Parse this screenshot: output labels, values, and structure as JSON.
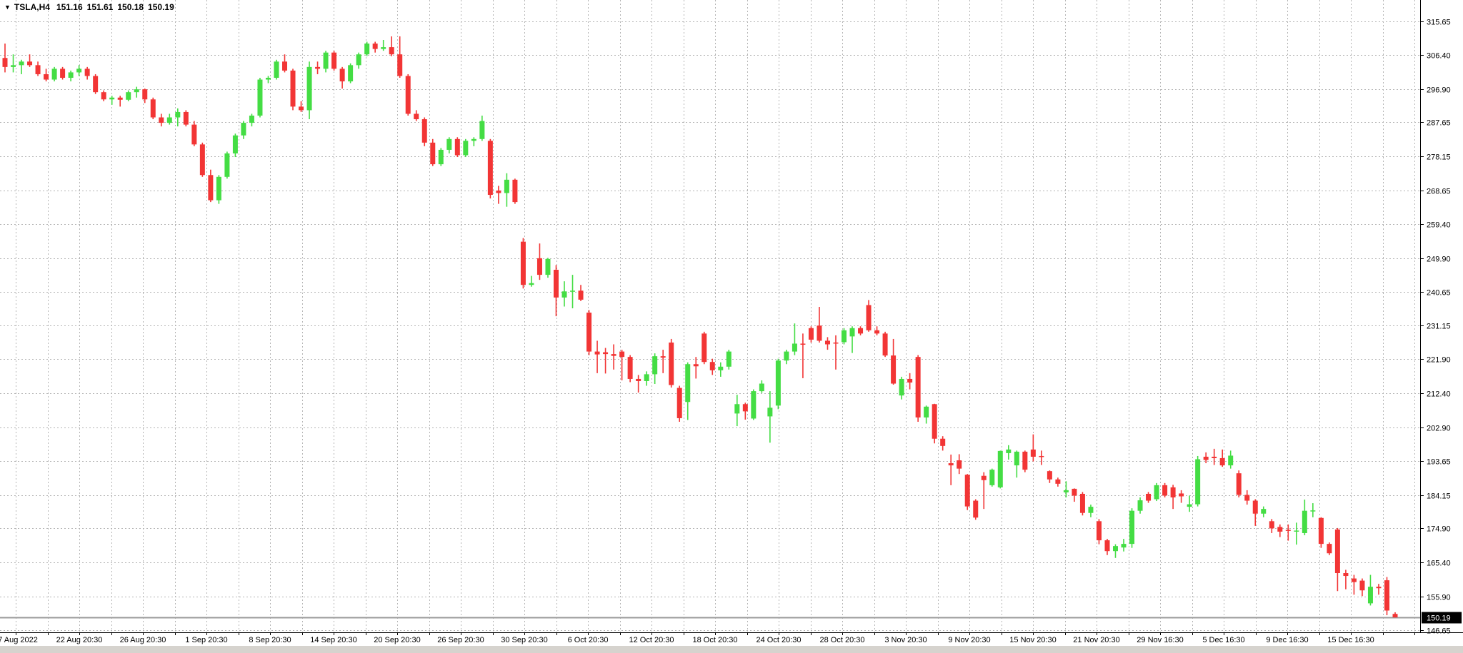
{
  "title_overlay": {
    "dropdown_icon": "▼",
    "symbol_period": "TSLA,H4",
    "open": "151.16",
    "high": "151.61",
    "low": "150.18",
    "close": "150.19"
  },
  "colors": {
    "background": "#ffffff",
    "bull": "#44dd44",
    "bear": "#f23535",
    "grid": "#b4b4b4",
    "axis_line": "#000000",
    "axis_text": "#000000",
    "price_line": "#9b9b9b",
    "badge_bg": "#000000",
    "badge_text": "#ffffff",
    "bottom_strip": "#d6d3ce"
  },
  "y_axis": {
    "labels": [
      "315.65",
      "306.40",
      "296.90",
      "287.65",
      "278.15",
      "268.65",
      "259.40",
      "249.90",
      "240.65",
      "231.15",
      "221.90",
      "212.40",
      "202.90",
      "193.65",
      "184.15",
      "174.90",
      "165.40",
      "155.90",
      "146.65"
    ],
    "current_price": "150.19"
  },
  "x_axis": {
    "labels": [
      "17 Aug 2022",
      "22 Aug 20:30",
      "26 Aug 20:30",
      "1 Sep 20:30",
      "8 Sep 20:30",
      "14 Sep 20:30",
      "20 Sep 20:30",
      "26 Sep 20:30",
      "30 Sep 20:30",
      "6 Oct 20:30",
      "12 Oct 20:30",
      "18 Oct 20:30",
      "24 Oct 20:30",
      "28 Oct 20:30",
      "3 Nov 20:30",
      "9 Nov 20:30",
      "15 Nov 20:30",
      "21 Nov 20:30",
      "29 Nov 16:30",
      "5 Dec 16:30",
      "9 Dec 16:30",
      "15 Dec 16:30"
    ]
  },
  "chart_data": {
    "type": "candlestick",
    "symbol": "TSLA",
    "timeframe": "H4",
    "title": "TSLA,H4",
    "quote": {
      "open": 151.16,
      "high": 151.61,
      "low": 150.18,
      "close": 150.19
    },
    "current_price": 150.19,
    "price_range_shown": [
      146.65,
      315.65
    ],
    "price_axis_ticks": [
      315.65,
      306.4,
      296.9,
      287.65,
      278.15,
      268.65,
      259.4,
      249.9,
      240.65,
      231.15,
      221.9,
      212.4,
      202.9,
      193.65,
      184.15,
      174.9,
      165.4,
      155.9,
      146.65
    ],
    "time_axis_ticks": [
      "17 Aug 2022",
      "22 Aug 20:30",
      "26 Aug 20:30",
      "1 Sep 20:30",
      "8 Sep 20:30",
      "14 Sep 20:30",
      "20 Sep 20:30",
      "26 Sep 20:30",
      "30 Sep 20:30",
      "6 Oct 20:30",
      "12 Oct 20:30",
      "18 Oct 20:30",
      "24 Oct 20:30",
      "28 Oct 20:30",
      "3 Nov 20:30",
      "9 Nov 20:30",
      "15 Nov 20:30",
      "21 Nov 20:30",
      "29 Nov 16:30",
      "5 Dec 16:30",
      "9 Dec 16:30",
      "15 Dec 16:30"
    ],
    "grid": "dashed",
    "legend": "none",
    "candles_ohlc": [
      [
        305.5,
        309.5,
        301.5,
        303
      ],
      [
        303,
        306.5,
        301.5,
        303.5
      ],
      [
        303.5,
        305,
        301,
        304.5
      ],
      [
        304.5,
        306.5,
        303,
        303.5
      ],
      [
        303.5,
        304.5,
        300.5,
        301
      ],
      [
        301,
        302.5,
        299,
        299.5
      ],
      [
        299.5,
        303,
        299,
        302.5
      ],
      [
        302.5,
        303,
        299.5,
        300
      ],
      [
        300,
        302,
        299,
        301.5
      ],
      [
        301.5,
        303.5,
        300.5,
        302.5
      ],
      [
        302.5,
        303,
        299.5,
        300.5
      ],
      [
        300.5,
        301,
        295.5,
        296
      ],
      [
        296,
        296.5,
        293.5,
        294
      ],
      [
        294,
        295,
        292.5,
        294.5
      ],
      [
        294.5,
        295,
        292,
        293.9
      ],
      [
        293.9,
        296.5,
        293.5,
        296
      ],
      [
        296,
        297.5,
        294.5,
        296.8
      ],
      [
        296.8,
        297,
        293,
        294
      ],
      [
        294,
        294.5,
        288.5,
        289
      ],
      [
        289,
        290,
        286.5,
        287.5
      ],
      [
        287.5,
        290,
        287,
        289
      ],
      [
        289,
        291.5,
        286.5,
        290.5
      ],
      [
        290.5,
        291,
        286.5,
        287
      ],
      [
        287,
        288,
        281,
        281.5
      ],
      [
        281.5,
        282,
        272.5,
        273
      ],
      [
        273,
        274.5,
        265.5,
        266
      ],
      [
        266,
        273,
        265,
        272.5
      ],
      [
        272.5,
        279.5,
        272,
        279
      ],
      [
        279,
        284.5,
        278,
        284
      ],
      [
        284,
        288,
        283,
        287.5
      ],
      [
        287.5,
        290,
        286.5,
        289.5
      ],
      [
        289.5,
        300,
        289,
        299.5
      ],
      [
        299.5,
        300.5,
        298.5,
        300
      ],
      [
        300,
        305,
        299.5,
        304.5
      ],
      [
        304.5,
        306.5,
        301.5,
        302
      ],
      [
        302,
        302.5,
        291,
        292
      ],
      [
        292,
        293.5,
        290.5,
        291
      ],
      [
        291,
        304.5,
        288.5,
        303
      ],
      [
        303,
        304.5,
        301,
        302.5
      ],
      [
        302.5,
        307.5,
        301.5,
        307
      ],
      [
        307,
        307.5,
        302,
        302.5
      ],
      [
        302.5,
        303,
        297,
        299
      ],
      [
        299,
        304,
        298.5,
        303.5
      ],
      [
        303.5,
        307,
        302.5,
        306.5
      ],
      [
        306.5,
        310,
        306,
        309.5
      ],
      [
        309.5,
        310,
        307,
        308
      ],
      [
        308,
        310.5,
        307.5,
        308.5
      ],
      [
        308.5,
        311.5,
        306,
        306.5
      ],
      [
        306.5,
        311.5,
        300,
        300.5
      ],
      [
        300.5,
        301,
        289.5,
        290
      ],
      [
        290,
        291,
        288,
        288.5
      ],
      [
        288.5,
        289,
        281,
        282
      ],
      [
        282,
        283,
        275.5,
        276
      ],
      [
        276,
        280.5,
        275.5,
        280
      ],
      [
        280,
        283.5,
        279,
        283
      ],
      [
        283,
        283.5,
        278,
        278.5
      ],
      [
        278.5,
        283,
        278,
        282.5
      ],
      [
        282.5,
        283.5,
        281,
        283
      ],
      [
        283,
        289.5,
        282.5,
        288
      ],
      [
        282.5,
        283,
        266.5,
        267.5
      ],
      [
        268.7,
        270,
        265,
        268
      ],
      [
        268,
        273.5,
        264.2,
        271.7
      ],
      [
        271.7,
        272,
        265,
        265.5
      ],
      [
        254.5,
        255.5,
        241.5,
        242.5
      ],
      [
        242.5,
        245,
        242,
        243
      ],
      [
        249.9,
        254,
        243.9,
        245.3
      ],
      [
        245.3,
        250,
        244.5,
        249.7
      ],
      [
        246.7,
        248,
        233.8,
        239
      ],
      [
        239,
        243.5,
        236.5,
        240.7
      ],
      [
        240.7,
        245.3,
        236,
        240.9
      ],
      [
        240.9,
        242.5,
        238,
        238.4
      ],
      [
        234.8,
        235.5,
        223,
        224
      ],
      [
        224,
        227,
        218,
        223.2
      ],
      [
        223.8,
        225,
        217.9,
        223.3
      ],
      [
        223.3,
        226,
        219,
        222.8
      ],
      [
        224,
        224.5,
        216,
        222.5
      ],
      [
        222.5,
        223,
        215.5,
        216.4
      ],
      [
        216.4,
        217.5,
        212.6,
        215.8
      ],
      [
        215.8,
        218.5,
        214.5,
        217.7
      ],
      [
        217.7,
        223.5,
        215,
        222.7
      ],
      [
        222.7,
        224.5,
        218,
        222.3
      ],
      [
        226.5,
        227.5,
        214,
        214.7
      ],
      [
        213.9,
        214.5,
        204.5,
        205.5
      ],
      [
        210,
        221,
        205,
        220.5
      ],
      [
        220.5,
        222.5,
        216.5,
        219.9
      ],
      [
        229,
        229.5,
        220.5,
        221.1
      ],
      [
        221.1,
        222,
        217.5,
        218.8
      ],
      [
        218.8,
        221,
        217,
        219.8
      ],
      [
        219.8,
        224.5,
        219,
        224
      ],
      [
        206.8,
        212,
        203.3,
        209.4
      ],
      [
        209.4,
        209.8,
        205.1,
        207.4
      ],
      [
        205.4,
        213.5,
        205,
        213
      ],
      [
        213,
        216,
        212.5,
        215.1
      ],
      [
        206,
        213,
        198.7,
        208.4
      ],
      [
        209,
        222,
        208,
        221.5
      ],
      [
        221.5,
        224.5,
        220.5,
        224
      ],
      [
        224,
        231.8,
        223,
        226.2
      ],
      [
        226.2,
        229,
        216.6,
        225.9
      ],
      [
        230.5,
        231,
        226.5,
        227.3
      ],
      [
        231.2,
        236.4,
        226.5,
        227
      ],
      [
        227,
        228,
        224.5,
        226
      ],
      [
        226.5,
        228.5,
        219,
        226.3
      ],
      [
        226.6,
        230.5,
        226,
        229.9
      ],
      [
        228.2,
        231,
        223.6,
        230.5
      ],
      [
        230.5,
        231,
        228.5,
        229
      ],
      [
        236.9,
        238.3,
        229.5,
        229.9
      ],
      [
        229.9,
        231,
        228.5,
        229
      ],
      [
        229,
        229.5,
        222.5,
        222.9
      ],
      [
        222.9,
        227.5,
        214.8,
        215.1
      ],
      [
        211.8,
        217,
        210.7,
        216.4
      ],
      [
        216.4,
        218,
        213.5,
        215.4
      ],
      [
        222.5,
        223,
        204.5,
        205.7
      ],
      [
        205.7,
        209,
        204,
        208.7
      ],
      [
        209.4,
        209.5,
        198.5,
        199.8
      ],
      [
        199.8,
        200.5,
        196.5,
        197.8
      ],
      [
        193,
        195.4,
        186.9,
        192.4
      ],
      [
        193.8,
        195.5,
        190,
        191.5
      ],
      [
        189.8,
        190,
        180,
        181
      ],
      [
        182.6,
        183,
        177.3,
        177.9
      ],
      [
        189.5,
        190.5,
        180.3,
        188.3
      ],
      [
        186.9,
        191.5,
        186.5,
        191.2
      ],
      [
        186.3,
        196.5,
        186,
        196.4
      ],
      [
        195.8,
        198,
        194,
        196.8
      ],
      [
        192.4,
        196.5,
        189,
        196.2
      ],
      [
        196.2,
        196.5,
        190.5,
        191.2
      ],
      [
        196.8,
        201,
        193.5,
        194.8
      ],
      [
        195,
        196.5,
        192.5,
        194.9
      ],
      [
        190.8,
        191,
        187.5,
        188.5
      ],
      [
        188.5,
        189,
        186.5,
        187.3
      ],
      [
        184.9,
        188,
        183.5,
        185.5
      ],
      [
        185.9,
        186,
        182.3,
        184
      ],
      [
        184.5,
        185,
        178.5,
        179.2
      ],
      [
        179.2,
        181.5,
        178,
        180.9
      ],
      [
        176.9,
        177.5,
        170.5,
        171.6
      ],
      [
        171.6,
        172,
        167.5,
        168.6
      ],
      [
        168.6,
        170.5,
        166.7,
        170
      ],
      [
        169.6,
        172,
        168.5,
        170.6
      ],
      [
        170.6,
        180.5,
        169.5,
        179.8
      ],
      [
        179.8,
        183.5,
        179,
        182.7
      ],
      [
        184.5,
        185,
        182,
        182.6
      ],
      [
        183,
        187.5,
        182.5,
        186.9
      ],
      [
        186.9,
        187.5,
        183.5,
        184
      ],
      [
        186.3,
        187,
        180.3,
        183.5
      ],
      [
        184.6,
        185.5,
        182,
        183.8
      ],
      [
        180.9,
        184,
        179.5,
        181.6
      ],
      [
        181.6,
        195,
        181,
        194.1
      ],
      [
        194.8,
        196,
        193,
        193.9
      ],
      [
        194.8,
        197,
        192.5,
        194.4
      ],
      [
        194.4,
        196.8,
        192,
        192.4
      ],
      [
        192.4,
        196.5,
        191.5,
        195.1
      ],
      [
        190.2,
        191,
        183.5,
        184.2
      ],
      [
        184.2,
        185.5,
        181.5,
        182.6
      ],
      [
        182.6,
        183,
        175.6,
        179
      ],
      [
        179,
        181,
        178,
        180.3
      ],
      [
        176.9,
        177.5,
        173.6,
        174.9
      ],
      [
        175.3,
        176,
        172.5,
        174
      ],
      [
        174.5,
        176,
        171.5,
        174.2
      ],
      [
        174,
        176.5,
        170.4,
        174.3
      ],
      [
        173.6,
        182.9,
        173,
        179.8
      ],
      [
        179.6,
        181.9,
        178,
        179.9
      ],
      [
        177.8,
        178,
        169.5,
        170.6
      ],
      [
        170.6,
        171,
        167.5,
        168
      ],
      [
        174.6,
        175,
        157.5,
        162.5
      ],
      [
        162.5,
        163.4,
        158,
        161.7
      ],
      [
        161,
        162,
        156.5,
        160
      ],
      [
        160.4,
        161,
        156.1,
        157.7
      ],
      [
        154.1,
        162,
        153.5,
        158.7
      ],
      [
        158.7,
        159.5,
        156.5,
        158.3
      ],
      [
        160.5,
        161.4,
        150.8,
        152.1
      ],
      [
        151.16,
        151.61,
        150.18,
        150.19
      ]
    ]
  }
}
